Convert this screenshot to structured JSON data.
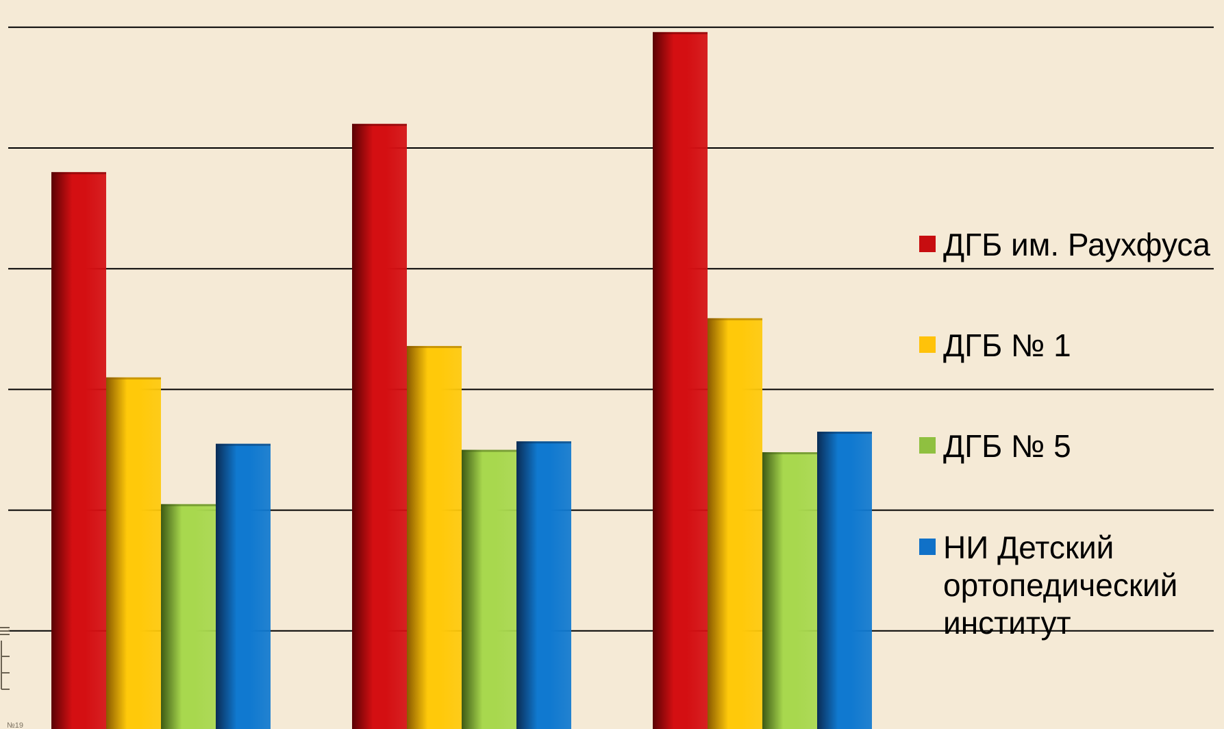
{
  "chart_data": {
    "type": "bar",
    "categories": [
      "",
      "",
      ""
    ],
    "ylim": [
      0,
      6
    ],
    "grid": true,
    "legend_position": "right",
    "series": [
      {
        "name": "ДГБ им. Раухфуса",
        "color": "#d40f12",
        "shade": "#5a0204",
        "values": [
          4.8,
          5.2,
          5.96
        ]
      },
      {
        "name": "ДГБ № 1",
        "color": "#ffc90a",
        "shade": "#8a5a00",
        "values": [
          3.1,
          3.36,
          3.59
        ]
      },
      {
        "name": "ДГБ № 5",
        "color": "#a8d84e",
        "shade": "#3d5a14",
        "values": [
          2.05,
          2.5,
          2.48
        ]
      },
      {
        "name": "НИ Детский ортопедический институт",
        "color": "#1079d0",
        "shade": "#0a2c55",
        "values": [
          2.55,
          2.57,
          2.65
        ]
      }
    ]
  },
  "legend": {
    "items": [
      {
        "lines": [
          "ДГБ им. Раухфуса"
        ],
        "icon": "red-square-icon"
      },
      {
        "lines": [
          "ДГБ № 1"
        ],
        "icon": "yellow-square-icon"
      },
      {
        "lines": [
          "ДГБ № 5"
        ],
        "icon": "green-square-icon"
      },
      {
        "lines": [
          "НИ Детский",
          "ортопедический",
          "институт"
        ],
        "icon": "blue-square-icon"
      }
    ]
  },
  "corner": {
    "text": "№19"
  }
}
